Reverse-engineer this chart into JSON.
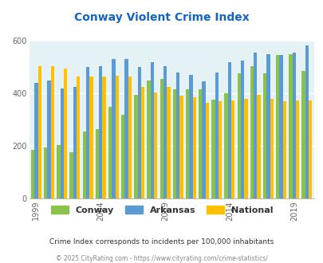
{
  "title": "Conway Violent Crime Index",
  "years": [
    1999,
    2000,
    2001,
    2002,
    2003,
    2004,
    2005,
    2006,
    2007,
    2008,
    2009,
    2010,
    2011,
    2012,
    2013,
    2014,
    2015,
    2016,
    2017,
    2018,
    2019,
    2020
  ],
  "conway": [
    185,
    195,
    205,
    175,
    255,
    265,
    350,
    320,
    395,
    450,
    455,
    415,
    415,
    415,
    375,
    400,
    475,
    505,
    475,
    545,
    550,
    485
  ],
  "arkansas": [
    440,
    450,
    420,
    425,
    500,
    505,
    530,
    530,
    500,
    518,
    505,
    480,
    470,
    445,
    480,
    520,
    525,
    555,
    550,
    545,
    555,
    583
  ],
  "national": [
    505,
    505,
    495,
    465,
    465,
    463,
    468,
    465,
    425,
    405,
    425,
    390,
    385,
    365,
    370,
    373,
    380,
    393,
    380,
    370,
    374,
    374
  ],
  "conway_color": "#8bc34a",
  "arkansas_color": "#5b9bd5",
  "national_color": "#ffc000",
  "bg_color": "#e4f1f5",
  "title_color": "#1565c0",
  "ylabel_max": 600,
  "yticks": [
    0,
    200,
    400,
    600
  ],
  "subtitle": "Crime Index corresponds to incidents per 100,000 inhabitants",
  "footer": "© 2025 CityRating.com - https://www.cityrating.com/crime-statistics/",
  "legend_labels": [
    "Conway",
    "Arkansas",
    "National"
  ],
  "xtick_years": [
    1999,
    2004,
    2009,
    2014,
    2019
  ]
}
